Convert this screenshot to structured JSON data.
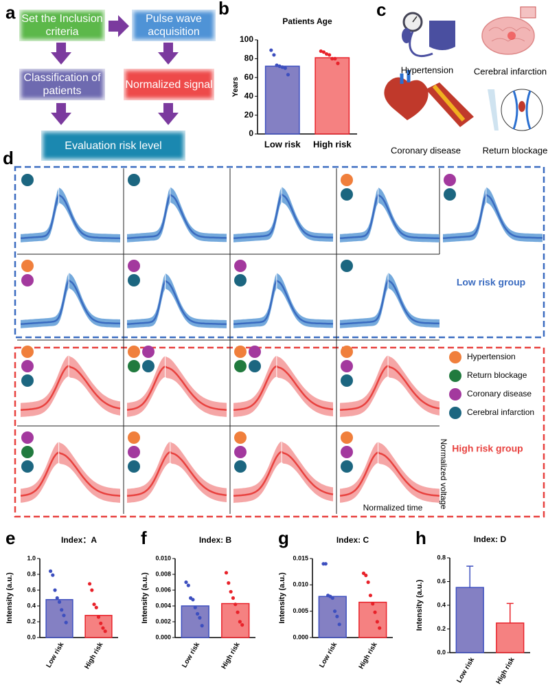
{
  "panel_labels": [
    "a",
    "b",
    "c",
    "d",
    "e",
    "f",
    "g",
    "h"
  ],
  "flowchart": {
    "nodes": [
      {
        "label": "Set the Inclusion criteria",
        "color": "#5cb84a"
      },
      {
        "label": "Pulse wave acquisition",
        "color": "#4f93d6"
      },
      {
        "label": "Classification of patients",
        "color": "#6e6ab0"
      },
      {
        "label": "Normalized signal",
        "color": "#ee4a4a"
      },
      {
        "label": "Evaluation risk level",
        "color": "#1b88b0"
      }
    ]
  },
  "illustrations": [
    "Hypertension",
    "Cerebral infarction",
    "Coronary disease",
    "Return blockage"
  ],
  "panel_d": {
    "low_group_label": "Low risk group",
    "high_group_label": "High risk group",
    "x_label": "Normalized time",
    "y_label": "Normalized voltage",
    "legend": [
      {
        "name": "Hypertension",
        "color": "#f07f3c"
      },
      {
        "name": "Return blockage",
        "color": "#217a3e"
      },
      {
        "name": "Coronary disease",
        "color": "#a3399e"
      },
      {
        "name": "Cerebral infarction",
        "color": "#1c6680"
      }
    ],
    "low_color": "#3a6bc0",
    "low_band": "#74a9dc",
    "high_color": "#e8413e",
    "high_band": "#f5a6a6",
    "low_panels": [
      [
        "#1c6680"
      ],
      [
        "#1c6680"
      ],
      [],
      [
        "#f07f3c",
        "#1c6680"
      ],
      [
        "#a3399e",
        "#1c6680"
      ],
      [
        "#f07f3c",
        "#a3399e"
      ],
      [
        "#a3399e",
        "#1c6680"
      ],
      [
        "#a3399e",
        "#1c6680"
      ],
      [
        "#1c6680"
      ]
    ],
    "high_panels": [
      [
        "#f07f3c",
        "#a3399e",
        "#1c6680"
      ],
      [
        "#f07f3c",
        "#a3399e",
        "#217a3e",
        "#1c6680"
      ],
      [
        "#f07f3c",
        "#a3399e",
        "#217a3e",
        "#1c6680"
      ],
      [
        "#f07f3c",
        "#a3399e",
        "#1c6680"
      ],
      [
        "#a3399e",
        "#217a3e",
        "#1c6680"
      ],
      [
        "#f07f3c",
        "#a3399e",
        "#1c6680"
      ],
      [
        "#f07f3c",
        "#a3399e",
        "#1c6680"
      ],
      [
        "#f07f3c",
        "#a3399e",
        "#1c6680"
      ]
    ]
  },
  "chart_data": [
    {
      "type": "bar",
      "title": "Patients Age",
      "y_label": "Years",
      "categories": [
        "Low risk",
        "High risk"
      ],
      "values": [
        72,
        81
      ],
      "colors": [
        "#6e6ab8",
        "#f36b6b"
      ],
      "point_colors": [
        "#3d4fbf",
        "#e8222a"
      ],
      "points": [
        [
          89,
          84,
          73,
          72,
          71,
          70,
          63
        ],
        [
          88,
          87,
          85,
          84,
          80,
          80,
          75
        ]
      ],
      "ylim": [
        0,
        100
      ],
      "yticks": [
        0,
        20,
        40,
        60,
        80,
        100
      ]
    },
    {
      "type": "bar",
      "title": "Index：A",
      "y_label": "Intensity (a.u.)",
      "categories": [
        "Low risk",
        "High risk"
      ],
      "values": [
        0.48,
        0.28
      ],
      "colors": [
        "#6e6ab8",
        "#f36b6b"
      ],
      "point_colors": [
        "#3d4fbf",
        "#e8222a"
      ],
      "points": [
        [
          0.84,
          0.79,
          0.6,
          0.5,
          0.45,
          0.35,
          0.28,
          0.19
        ],
        [
          0.68,
          0.6,
          0.42,
          0.38,
          0.26,
          0.18,
          0.12,
          0.08
        ]
      ],
      "ylim": [
        0,
        1
      ],
      "yticks": [
        {
          "value": 0,
          "label": "0.0"
        },
        0.2,
        0.4,
        0.6,
        0.8,
        {
          "value": 1,
          "label": "1.0"
        }
      ]
    },
    {
      "type": "bar",
      "title": "Index: B",
      "y_label": "Intensity (a.u.)",
      "categories": [
        "Low risk",
        "High risk"
      ],
      "values": [
        0.004,
        0.0043
      ],
      "colors": [
        "#6e6ab8",
        "#f36b6b"
      ],
      "point_colors": [
        "#3d4fbf",
        "#e8222a"
      ],
      "points": [
        [
          0.007,
          0.0066,
          0.005,
          0.0048,
          0.0038,
          0.003,
          0.0025,
          0.0015
        ],
        [
          0.0082,
          0.0069,
          0.0058,
          0.005,
          0.0042,
          0.0032,
          0.002,
          0.0016
        ]
      ],
      "ylim": [
        0,
        0.01
      ],
      "yticks": [
        {
          "value": 0,
          "label": "0.000"
        },
        0.002,
        0.004,
        0.006,
        0.008,
        {
          "value": 0.01,
          "label": "0.010"
        }
      ]
    },
    {
      "type": "bar",
      "title": "Index: C",
      "y_label": "Intensity (a.u.)",
      "categories": [
        "Low risk",
        "High risk"
      ],
      "values": [
        0.0078,
        0.0067
      ],
      "colors": [
        "#6e6ab8",
        "#f36b6b"
      ],
      "point_colors": [
        "#3d4fbf",
        "#e8222a"
      ],
      "points": [
        [
          0.014,
          0.014,
          0.008,
          0.0078,
          0.0075,
          0.005,
          0.004,
          0.0025
        ],
        [
          0.0122,
          0.0118,
          0.0105,
          0.008,
          0.0064,
          0.0048,
          0.003,
          0.0018
        ]
      ],
      "ylim": [
        0,
        0.015
      ],
      "yticks": [
        {
          "value": 0,
          "label": "0.000"
        },
        0.005,
        {
          "value": 0.01,
          "label": "0.010"
        },
        0.015
      ]
    },
    {
      "type": "bar",
      "title": "Index: D",
      "y_label": "Intensity (a.u.)",
      "categories": [
        "Low risk",
        "High risk"
      ],
      "values": [
        0.55,
        0.25
      ],
      "errors": [
        0.18,
        0.165
      ],
      "colors": [
        "#6e6ab8",
        "#f36b6b"
      ],
      "point_colors": [
        "#3d4fbf",
        "#e8222a"
      ],
      "ylim": [
        0,
        0.8
      ],
      "yticks": [
        {
          "value": 0,
          "label": "0.0"
        },
        0.2,
        0.4,
        0.6,
        0.8
      ]
    }
  ]
}
